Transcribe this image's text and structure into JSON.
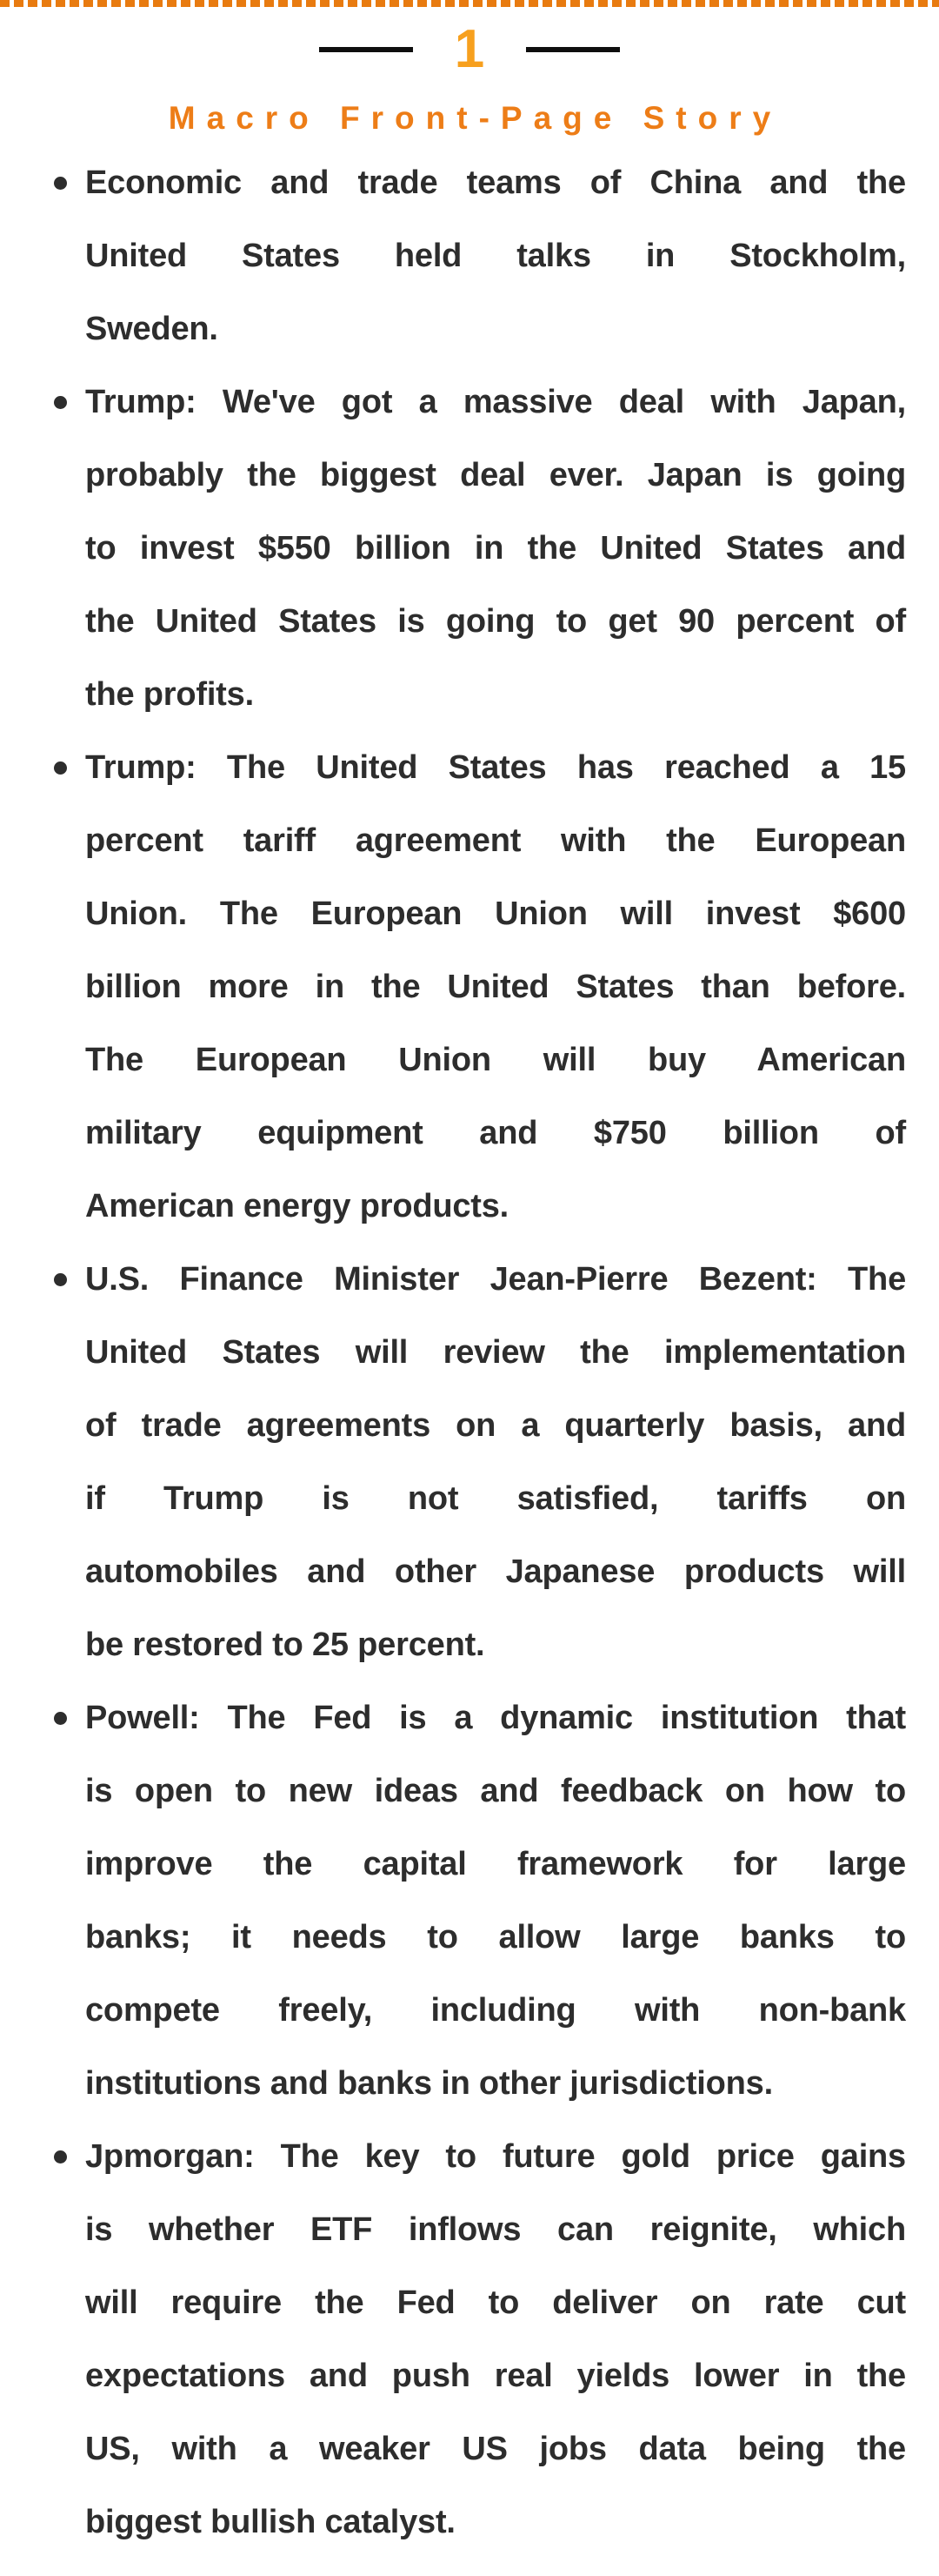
{
  "page": {
    "number": "1",
    "title": "Macro Front-Page Story"
  },
  "colors": {
    "dash_orange": "#E87B10",
    "number_orange": "#F7A01E",
    "title_orange": "#ED7D17",
    "text_dark": "#2D2D2D",
    "rule_black": "#0E0E0E",
    "background": "#FFFFFF"
  },
  "bullets": [
    [
      "Economic and trade teams of China and the",
      "United States held talks in Stockholm,",
      "Sweden."
    ],
    [
      "Trump: We've got a massive deal with Japan,",
      "probably the biggest deal ever. Japan is going",
      "to invest $550 billion in the United States and",
      "the United States is going to get 90 percent of",
      "the profits."
    ],
    [
      "Trump: The United States has reached a 15",
      "percent tariff agreement with the European",
      "Union. The European Union will invest $600",
      "billion more in the United States than before.",
      "The European Union will buy American",
      "military equipment and $750 billion of",
      "American energy products."
    ],
    [
      "U.S. Finance Minister Jean-Pierre Bezent: The",
      "United States will review the implementation",
      "of trade agreements on a quarterly basis, and",
      "if Trump is not satisfied, tariffs on",
      "automobiles and other Japanese products will",
      "be restored to 25 percent."
    ],
    [
      "Powell: The Fed is a dynamic institution that",
      "is open to new ideas and feedback on how to",
      "improve the capital framework for large",
      "banks; it needs to allow large banks to",
      "compete freely, including with non-bank",
      "institutions and banks in other jurisdictions."
    ],
    [
      "Jpmorgan: The key to future gold price gains",
      "is whether ETF inflows can reignite, which",
      "will require the Fed to deliver on rate cut",
      "expectations and push real yields lower in the",
      "US, with a weaker US jobs data being the",
      "biggest bullish catalyst."
    ]
  ]
}
